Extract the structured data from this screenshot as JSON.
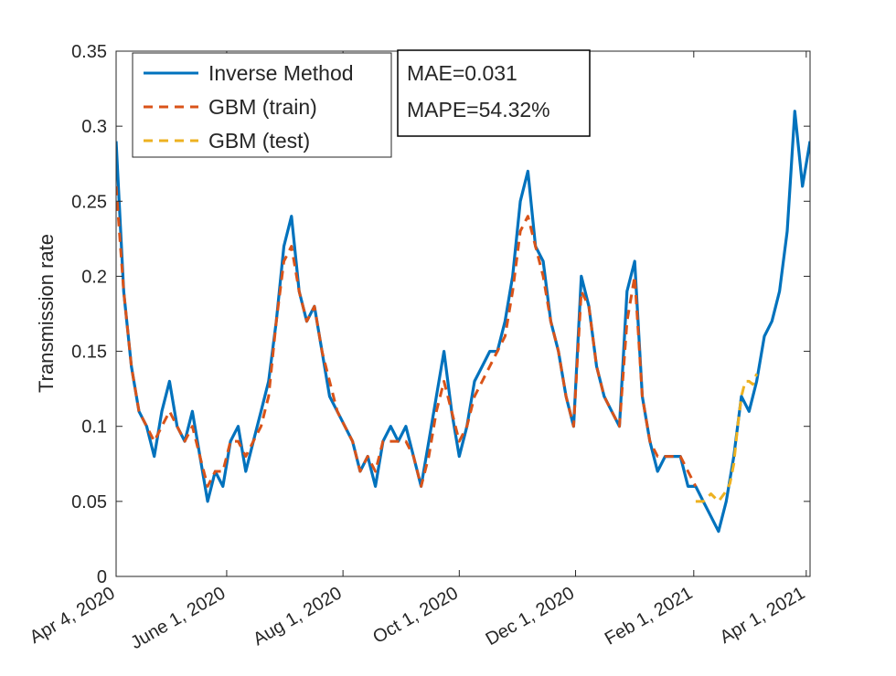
{
  "chart_data": {
    "type": "line",
    "title": "",
    "xlabel": "",
    "ylabel": "Transmission rate",
    "ylim": [
      0,
      0.35
    ],
    "yticks": [
      "0",
      "0.05",
      "0.1",
      "0.15",
      "0.2",
      "0.25",
      "0.3",
      "0.35"
    ],
    "xlim": [
      "2020-04-04",
      "2021-04-03"
    ],
    "xticks": [
      {
        "label": "Apr 4, 2020",
        "date": "2020-04-04"
      },
      {
        "label": "June 1, 2020",
        "date": "2020-06-01"
      },
      {
        "label": "Aug 1, 2020",
        "date": "2020-08-01"
      },
      {
        "label": "Oct 1, 2020",
        "date": "2020-10-01"
      },
      {
        "label": "Dec 1, 2020",
        "date": "2020-12-01"
      },
      {
        "label": "Feb 1, 2021",
        "date": "2021-02-01"
      },
      {
        "label": "Apr 1, 2021",
        "date": "2021-04-01"
      }
    ],
    "grid": false,
    "legend_position": "top-left",
    "annotation": {
      "mae": "MAE=0.031",
      "mape": "MAPE=54.32%"
    },
    "series": [
      {
        "name": "Inverse Method",
        "style": "solid",
        "color": "#0072BD",
        "x": [
          "2020-04-04",
          "2020-04-08",
          "2020-04-12",
          "2020-04-16",
          "2020-04-20",
          "2020-04-24",
          "2020-04-28",
          "2020-05-02",
          "2020-05-06",
          "2020-05-10",
          "2020-05-14",
          "2020-05-18",
          "2020-05-22",
          "2020-05-26",
          "2020-05-30",
          "2020-06-03",
          "2020-06-07",
          "2020-06-11",
          "2020-06-15",
          "2020-06-19",
          "2020-06-23",
          "2020-06-27",
          "2020-07-01",
          "2020-07-05",
          "2020-07-09",
          "2020-07-13",
          "2020-07-17",
          "2020-07-21",
          "2020-07-25",
          "2020-07-29",
          "2020-08-02",
          "2020-08-06",
          "2020-08-10",
          "2020-08-14",
          "2020-08-18",
          "2020-08-22",
          "2020-08-26",
          "2020-08-30",
          "2020-09-03",
          "2020-09-07",
          "2020-09-11",
          "2020-09-15",
          "2020-09-19",
          "2020-09-23",
          "2020-09-27",
          "2020-10-01",
          "2020-10-05",
          "2020-10-09",
          "2020-10-13",
          "2020-10-17",
          "2020-10-21",
          "2020-10-25",
          "2020-10-29",
          "2020-11-02",
          "2020-11-06",
          "2020-11-10",
          "2020-11-14",
          "2020-11-18",
          "2020-11-22",
          "2020-11-26",
          "2020-11-30",
          "2020-12-04",
          "2020-12-08",
          "2020-12-12",
          "2020-12-16",
          "2020-12-20",
          "2020-12-24",
          "2020-12-28",
          "2021-01-01",
          "2021-01-05",
          "2021-01-09",
          "2021-01-13",
          "2021-01-17",
          "2021-01-21",
          "2021-01-25",
          "2021-01-29",
          "2021-02-02",
          "2021-02-06",
          "2021-02-10",
          "2021-02-14",
          "2021-02-18",
          "2021-02-22",
          "2021-02-26",
          "2021-03-02",
          "2021-03-06",
          "2021-03-10",
          "2021-03-14",
          "2021-03-18",
          "2021-03-22",
          "2021-03-26",
          "2021-03-30",
          "2021-04-03"
        ],
        "y": [
          0.29,
          0.19,
          0.14,
          0.11,
          0.1,
          0.08,
          0.11,
          0.13,
          0.1,
          0.09,
          0.11,
          0.08,
          0.05,
          0.07,
          0.06,
          0.09,
          0.1,
          0.07,
          0.09,
          0.11,
          0.13,
          0.17,
          0.22,
          0.24,
          0.19,
          0.17,
          0.18,
          0.15,
          0.12,
          0.11,
          0.1,
          0.09,
          0.07,
          0.08,
          0.06,
          0.09,
          0.1,
          0.09,
          0.1,
          0.08,
          0.06,
          0.09,
          0.12,
          0.15,
          0.11,
          0.08,
          0.1,
          0.13,
          0.14,
          0.15,
          0.15,
          0.17,
          0.2,
          0.25,
          0.27,
          0.22,
          0.21,
          0.17,
          0.15,
          0.12,
          0.1,
          0.2,
          0.18,
          0.14,
          0.12,
          0.11,
          0.1,
          0.19,
          0.21,
          0.12,
          0.09,
          0.07,
          0.08,
          0.08,
          0.08,
          0.06,
          0.06,
          0.05,
          0.04,
          0.03,
          0.05,
          0.08,
          0.12,
          0.11,
          0.13,
          0.16,
          0.17,
          0.19,
          0.23,
          0.31,
          0.26,
          0.29
        ]
      },
      {
        "name": "GBM (train)",
        "style": "dashed",
        "color": "#D95319",
        "x": [
          "2020-04-04",
          "2020-04-08",
          "2020-04-12",
          "2020-04-16",
          "2020-04-20",
          "2020-04-24",
          "2020-04-28",
          "2020-05-02",
          "2020-05-06",
          "2020-05-10",
          "2020-05-14",
          "2020-05-18",
          "2020-05-22",
          "2020-05-26",
          "2020-05-30",
          "2020-06-03",
          "2020-06-07",
          "2020-06-11",
          "2020-06-15",
          "2020-06-19",
          "2020-06-23",
          "2020-06-27",
          "2020-07-01",
          "2020-07-05",
          "2020-07-09",
          "2020-07-13",
          "2020-07-17",
          "2020-07-21",
          "2020-07-25",
          "2020-07-29",
          "2020-08-02",
          "2020-08-06",
          "2020-08-10",
          "2020-08-14",
          "2020-08-18",
          "2020-08-22",
          "2020-08-26",
          "2020-08-30",
          "2020-09-03",
          "2020-09-07",
          "2020-09-11",
          "2020-09-15",
          "2020-09-19",
          "2020-09-23",
          "2020-09-27",
          "2020-10-01",
          "2020-10-05",
          "2020-10-09",
          "2020-10-13",
          "2020-10-17",
          "2020-10-21",
          "2020-10-25",
          "2020-10-29",
          "2020-11-02",
          "2020-11-06",
          "2020-11-10",
          "2020-11-14",
          "2020-11-18",
          "2020-11-22",
          "2020-11-26",
          "2020-11-30",
          "2020-12-04",
          "2020-12-08",
          "2020-12-12",
          "2020-12-16",
          "2020-12-20",
          "2020-12-24",
          "2020-12-28",
          "2021-01-01",
          "2021-01-05",
          "2021-01-09",
          "2021-01-13",
          "2021-01-17",
          "2021-01-21",
          "2021-01-25",
          "2021-01-29",
          "2021-02-02"
        ],
        "y": [
          0.26,
          0.19,
          0.14,
          0.11,
          0.1,
          0.09,
          0.1,
          0.11,
          0.1,
          0.09,
          0.1,
          0.08,
          0.06,
          0.07,
          0.07,
          0.09,
          0.09,
          0.08,
          0.09,
          0.1,
          0.12,
          0.17,
          0.21,
          0.22,
          0.19,
          0.17,
          0.18,
          0.15,
          0.13,
          0.11,
          0.1,
          0.09,
          0.07,
          0.08,
          0.07,
          0.09,
          0.09,
          0.09,
          0.09,
          0.08,
          0.06,
          0.08,
          0.11,
          0.13,
          0.11,
          0.09,
          0.1,
          0.12,
          0.13,
          0.14,
          0.15,
          0.16,
          0.19,
          0.23,
          0.24,
          0.22,
          0.2,
          0.17,
          0.15,
          0.12,
          0.1,
          0.19,
          0.18,
          0.14,
          0.12,
          0.11,
          0.1,
          0.17,
          0.2,
          0.12,
          0.09,
          0.08,
          0.08,
          0.08,
          0.08,
          0.07,
          0.06
        ]
      },
      {
        "name": "GBM (test)",
        "style": "dashed",
        "color": "#EDB120",
        "x": [
          "2021-02-02",
          "2021-02-06",
          "2021-02-10",
          "2021-02-14",
          "2021-02-18",
          "2021-02-20",
          "2021-02-22",
          "2021-02-24",
          "2021-02-26",
          "2021-02-28",
          "2021-03-02",
          "2021-03-04",
          "2021-03-06"
        ],
        "y": [
          0.05,
          0.05,
          0.055,
          0.05,
          0.057,
          0.062,
          0.075,
          0.1,
          0.12,
          0.13,
          0.13,
          0.128,
          0.135
        ]
      }
    ]
  }
}
